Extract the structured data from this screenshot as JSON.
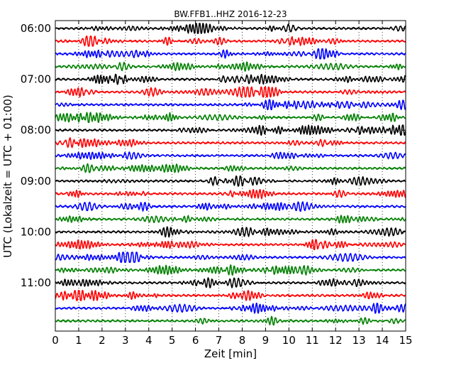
{
  "chart_data": {
    "type": "line",
    "title": "BW.FFB1..HHZ 2016-12-23",
    "xlabel": "Zeit  [min]",
    "ylabel": "UTC (Lokalzeit = UTC + 01:00)",
    "xlim": [
      0,
      15
    ],
    "x_ticks": [
      0,
      1,
      2,
      3,
      4,
      5,
      6,
      7,
      8,
      9,
      10,
      11,
      12,
      13,
      14,
      15
    ],
    "x_tick_labels": [
      "0",
      "1",
      "2",
      "3",
      "4",
      "5",
      "6",
      "7",
      "8",
      "9",
      "10",
      "11",
      "12",
      "13",
      "14",
      "15"
    ],
    "y_tick_labels": [
      "06:00",
      "07:00",
      "08:00",
      "09:00",
      "10:00",
      "11:00"
    ],
    "trace_interval_min": 15,
    "traces_per_hour": 4,
    "trace_count": 24,
    "color_cycle": [
      "#000000",
      "#ff0000",
      "#0000ff",
      "#008000"
    ],
    "grid": {
      "vertical_dotted": true
    },
    "signal": "continuous seismic noise (relative amplitude)"
  }
}
